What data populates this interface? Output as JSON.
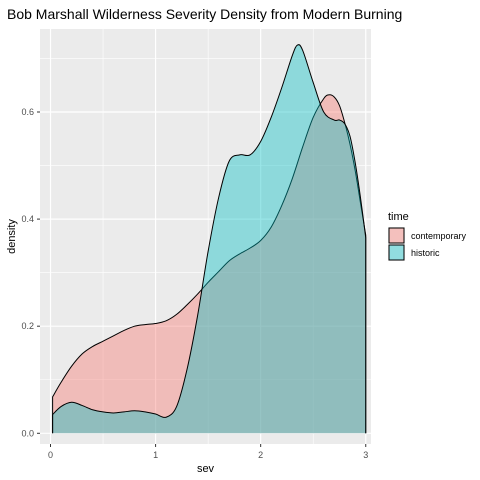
{
  "chart_data": {
    "type": "area",
    "title": "Bob Marshall Wilderness Severity Density from Modern Burning",
    "xlabel": "sev",
    "ylabel": "density",
    "xlim": [
      -0.1,
      3.05
    ],
    "ylim": [
      -0.02,
      0.755
    ],
    "x_ticks": [
      "0",
      "1",
      "2",
      "3"
    ],
    "y_ticks": [
      "0.0",
      "0.2",
      "0.4",
      "0.6"
    ],
    "grid": true,
    "legend": {
      "title": "time",
      "position": "right"
    },
    "series": [
      {
        "name": "contemporary",
        "color": "#F8766D",
        "x": [
          0.02,
          0.1,
          0.2,
          0.3,
          0.4,
          0.5,
          0.6,
          0.7,
          0.8,
          0.9,
          1.0,
          1.1,
          1.2,
          1.3,
          1.4,
          1.5,
          1.6,
          1.7,
          1.8,
          1.9,
          2.0,
          2.1,
          2.2,
          2.3,
          2.4,
          2.5,
          2.6,
          2.65,
          2.7,
          2.75,
          2.8,
          2.85,
          2.9,
          2.95,
          3.0
        ],
        "y": [
          0.068,
          0.095,
          0.125,
          0.148,
          0.162,
          0.172,
          0.182,
          0.192,
          0.2,
          0.203,
          0.205,
          0.21,
          0.222,
          0.24,
          0.26,
          0.282,
          0.302,
          0.322,
          0.335,
          0.346,
          0.36,
          0.385,
          0.425,
          0.475,
          0.535,
          0.59,
          0.625,
          0.632,
          0.628,
          0.612,
          0.58,
          0.54,
          0.49,
          0.43,
          0.37
        ]
      },
      {
        "name": "historic",
        "color": "#00BFC4",
        "x": [
          0.02,
          0.1,
          0.2,
          0.3,
          0.4,
          0.5,
          0.6,
          0.7,
          0.8,
          0.9,
          1.0,
          1.1,
          1.2,
          1.3,
          1.4,
          1.5,
          1.6,
          1.7,
          1.8,
          1.9,
          2.0,
          2.1,
          2.2,
          2.3,
          2.35,
          2.4,
          2.5,
          2.6,
          2.7,
          2.75,
          2.8,
          2.85,
          2.9,
          2.95,
          3.0
        ],
        "y": [
          0.035,
          0.05,
          0.058,
          0.052,
          0.044,
          0.04,
          0.038,
          0.04,
          0.042,
          0.04,
          0.036,
          0.03,
          0.05,
          0.12,
          0.22,
          0.34,
          0.44,
          0.508,
          0.52,
          0.52,
          0.545,
          0.59,
          0.645,
          0.705,
          0.725,
          0.715,
          0.655,
          0.6,
          0.585,
          0.585,
          0.578,
          0.555,
          0.505,
          0.44,
          0.365
        ]
      }
    ]
  }
}
